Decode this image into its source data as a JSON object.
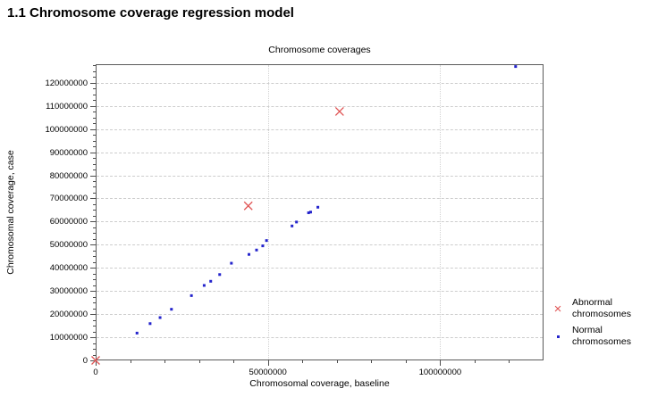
{
  "heading": "1.1 Chromosome coverage regression model",
  "chart_data": {
    "type": "scatter",
    "title": "Chromosome coverages",
    "xlabel": "Chromosomal coverage, baseline",
    "ylabel": "Chromosomal coverage, case",
    "xlim": [
      0,
      130000000
    ],
    "ylim": [
      0,
      128000000
    ],
    "grid": {
      "horizontal": "dashed",
      "vertical": "dotted",
      "color": "#cdcdcd"
    },
    "legend_position": "outside-right-bottom",
    "x_ticks": {
      "values": [
        0,
        50000000,
        100000000
      ],
      "labels": [
        "0",
        "50000000",
        "100000000"
      ],
      "minor_step": 10000000
    },
    "y_ticks": {
      "values": [
        0,
        10000000,
        20000000,
        30000000,
        40000000,
        50000000,
        60000000,
        70000000,
        80000000,
        90000000,
        100000000,
        110000000,
        120000000
      ],
      "labels": [
        "0",
        "10000000",
        "20000000",
        "30000000",
        "40000000",
        "50000000",
        "60000000",
        "70000000",
        "80000000",
        "90000000",
        "100000000",
        "110000000",
        "120000000"
      ],
      "minor_step": 2500000
    },
    "series": [
      {
        "name": "Abnormal chromosomes",
        "marker": "x",
        "color": "#e05555",
        "points": [
          [
            0,
            0
          ],
          [
            44300000,
            66800000
          ],
          [
            70800000,
            107600000
          ]
        ]
      },
      {
        "name": "Normal chromosomes",
        "marker": "dot",
        "color": "#2424cc",
        "points": [
          [
            12000000,
            11800000
          ],
          [
            15800000,
            15900000
          ],
          [
            18700000,
            18500000
          ],
          [
            22000000,
            22100000
          ],
          [
            27800000,
            28000000
          ],
          [
            31500000,
            32400000
          ],
          [
            33400000,
            34200000
          ],
          [
            36000000,
            37100000
          ],
          [
            39400000,
            42000000
          ],
          [
            44500000,
            45800000
          ],
          [
            46700000,
            47700000
          ],
          [
            48500000,
            49500000
          ],
          [
            49600000,
            51800000
          ],
          [
            57000000,
            58100000
          ],
          [
            58300000,
            59800000
          ],
          [
            61800000,
            63800000
          ],
          [
            62400000,
            64100000
          ],
          [
            64500000,
            66200000
          ],
          [
            121900000,
            127000000
          ]
        ]
      }
    ]
  }
}
